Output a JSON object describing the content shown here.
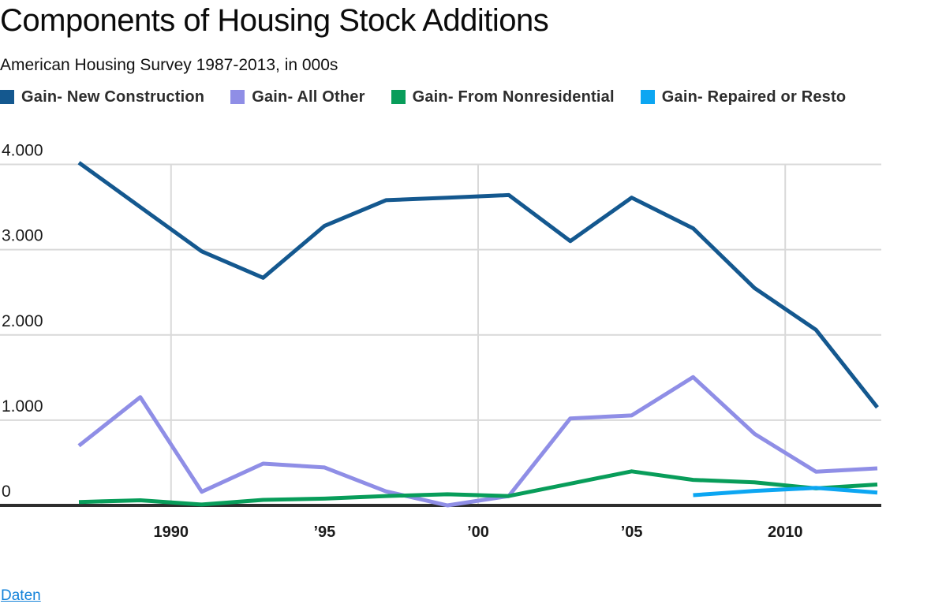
{
  "header": {
    "title": "Components of Housing Stock Additions",
    "subtitle": "American Housing Survey 1987-2013, in 000s"
  },
  "legend": {
    "items": [
      {
        "label": "Gain- New Construction",
        "color": "#14588f"
      },
      {
        "label": "Gain- All Other",
        "color": "#8f8ee6"
      },
      {
        "label": "Gain- From Nonresidential",
        "color": "#089d5a"
      },
      {
        "label": "Gain- Repaired or Resto",
        "color": "#0ca6f2"
      }
    ]
  },
  "chart_data": {
    "type": "line",
    "title": "Components of Housing Stock Additions",
    "subtitle": "American Housing Survey 1987-2013, in 000s",
    "unit": "thousands of housing units (000s)",
    "x": [
      1987,
      1989,
      1991,
      1993,
      1995,
      1997,
      1999,
      2001,
      2003,
      2005,
      2007,
      2009,
      2011,
      2013
    ],
    "series": [
      {
        "name": "Gain- New Construction",
        "color": "#14588f",
        "values": [
          4020,
          3500,
          2980,
          2670,
          3280,
          3580,
          3610,
          3640,
          3100,
          3610,
          3250,
          2550,
          2060,
          1150
        ]
      },
      {
        "name": "Gain- All Other",
        "color": "#8f8ee6",
        "values": [
          700,
          1270,
          160,
          490,
          445,
          165,
          0,
          110,
          1020,
          1055,
          1505,
          840,
          395,
          435
        ]
      },
      {
        "name": "Gain- From Nonresidential",
        "color": "#089d5a",
        "values": [
          40,
          60,
          10,
          65,
          80,
          110,
          130,
          110,
          255,
          400,
          300,
          270,
          200,
          245
        ]
      },
      {
        "name": "Gain- Repaired or Restored",
        "color": "#0ca6f2",
        "values": [
          null,
          null,
          null,
          null,
          null,
          null,
          null,
          null,
          null,
          null,
          120,
          170,
          205,
          150
        ]
      }
    ],
    "xlim": [
      1987,
      2013
    ],
    "ylim": [
      0,
      4000
    ],
    "y_ticks": [
      {
        "value": 0,
        "label": "0"
      },
      {
        "value": 1000,
        "label": "1.000"
      },
      {
        "value": 2000,
        "label": "2.000"
      },
      {
        "value": 3000,
        "label": "3.000"
      },
      {
        "value": 4000,
        "label": "4.000"
      }
    ],
    "x_ticks": [
      {
        "year": 1990,
        "label": "1990",
        "gridline": true
      },
      {
        "year": 1995,
        "label": "’95",
        "gridline": false
      },
      {
        "year": 2000,
        "label": "’00",
        "gridline": true
      },
      {
        "year": 2005,
        "label": "’05",
        "gridline": false
      },
      {
        "year": 2010,
        "label": "2010",
        "gridline": true
      }
    ],
    "grid": {
      "horizontal": true,
      "vertical": "decades only",
      "color": "#d9d9d9",
      "baseline_color": "#2e2e2e"
    },
    "legend_position": "top"
  },
  "footer": {
    "data_link_label": "Daten",
    "link_color": "#1181d9"
  }
}
